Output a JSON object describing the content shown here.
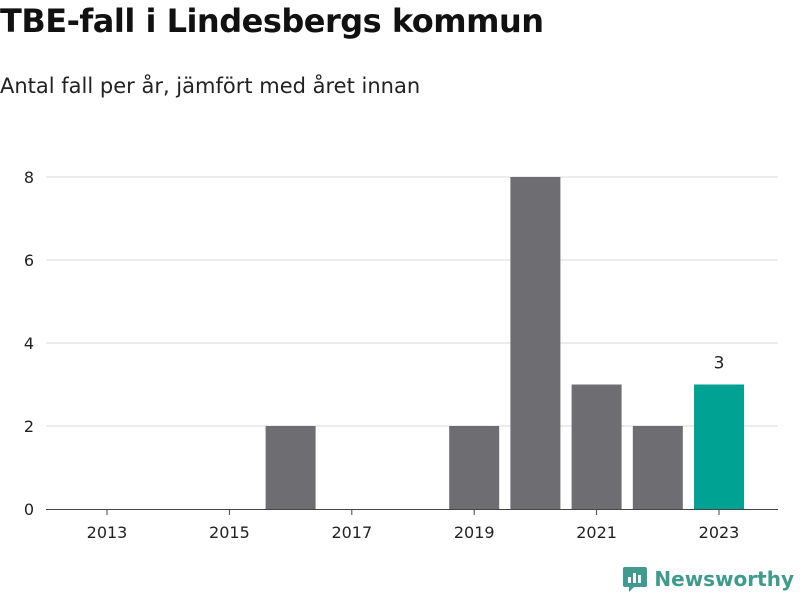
{
  "title": "TBE-fall i Lindesbergs kommun",
  "subtitle": "Antal fall per år, jämfört med året innan",
  "brand": "Newsworthy",
  "colors": {
    "bar": "#6d6d72",
    "highlight": "#00a294",
    "grid": "#d9d9d9",
    "axis": "#444444",
    "brand": "#3e9b8e"
  },
  "chart_data": {
    "type": "bar",
    "categories": [
      "2013",
      "2014",
      "2015",
      "2016",
      "2017",
      "2018",
      "2019",
      "2020",
      "2021",
      "2022",
      "2023"
    ],
    "values": [
      0,
      0,
      0,
      2,
      0,
      0,
      2,
      8,
      3,
      2,
      3
    ],
    "x_tick_labels": [
      "2013",
      "2015",
      "2017",
      "2019",
      "2021",
      "2023"
    ],
    "y_ticks": [
      0,
      2,
      4,
      6,
      8
    ],
    "ylim": [
      0,
      8
    ],
    "highlight_category": "2023",
    "data_labels": [
      {
        "category": "2023",
        "text": "3"
      }
    ],
    "grid": true
  }
}
